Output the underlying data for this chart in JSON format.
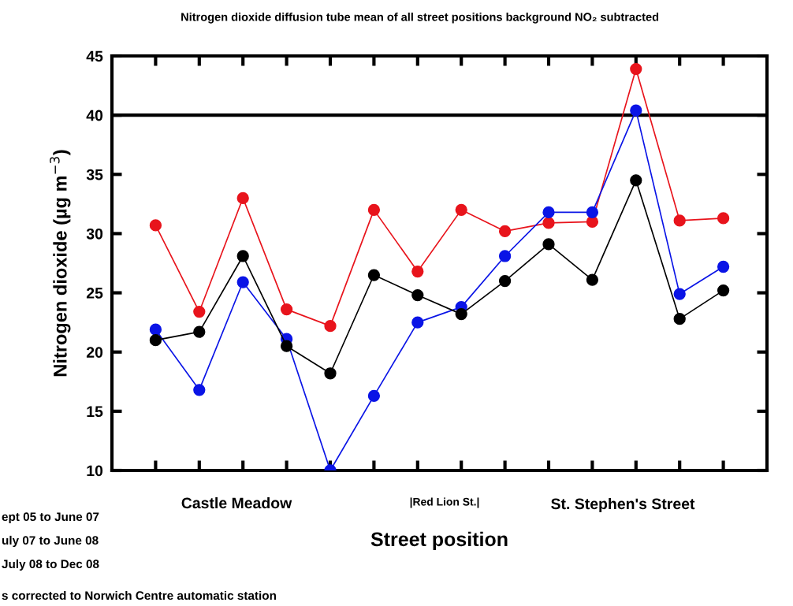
{
  "chart_data": {
    "type": "line",
    "title": "Nitrogen dioxide diffusion tube mean of all street positions background NO₂ subtracted",
    "xlabel": "Street position",
    "ylabel": "Nitrogen dioxide (µg m$^{−3}$)",
    "categories": [
      null,
      null,
      null,
      null,
      null,
      null,
      null,
      null,
      null,
      null,
      null,
      null,
      null,
      null
    ],
    "series": [
      {
        "color": "#e8141c",
        "values": [
          30.7,
          23.4,
          33.0,
          23.6,
          22.2,
          32.0,
          26.8,
          32.0,
          30.2,
          30.9,
          31.0,
          43.9,
          31.1,
          31.3
        ]
      },
      {
        "color": "#0a14e6",
        "values": [
          21.9,
          16.8,
          25.9,
          21.1,
          10.0,
          16.3,
          22.5,
          23.8,
          28.1,
          31.8,
          31.8,
          40.4,
          24.9,
          27.2
        ]
      },
      {
        "color": "#000000",
        "values": [
          21.0,
          21.7,
          28.1,
          20.5,
          18.2,
          26.5,
          24.8,
          23.2,
          26.0,
          29.1,
          26.1,
          34.5,
          22.8,
          25.2
        ]
      }
    ],
    "ylim": [
      10,
      45
    ],
    "yticks": [
      10,
      15,
      20,
      25,
      30,
      35,
      40,
      45
    ],
    "ref_lines": [
      {
        "axis": "y",
        "value": 40,
        "color": "#000000"
      }
    ],
    "marker": "circle",
    "line_style": "solid",
    "grid": false,
    "legend": false,
    "annotations": [
      "Castle Meadow",
      "|Red Lion St.|",
      "St. Stephen's Street",
      "ept 05 to June 07",
      "uly 07 to June 08",
      "July 08 to Dec 08",
      "s corrected to Norwich Centre automatic station"
    ]
  }
}
